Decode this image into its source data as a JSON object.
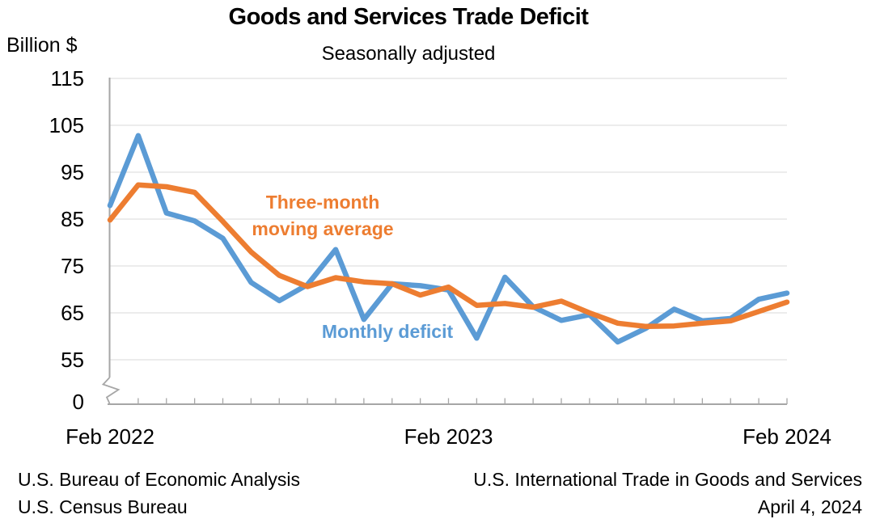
{
  "header": {
    "title": "Goods and Services Trade Deficit",
    "subtitle": "Seasonally adjusted"
  },
  "y_axis": {
    "unit_label": "Billion $",
    "ticks": [
      115,
      105,
      95,
      85,
      75,
      65,
      55
    ],
    "zero_label": "0",
    "has_axis_break": true
  },
  "x_axis": {
    "labels": [
      {
        "label": "Feb 2022",
        "index": 0
      },
      {
        "label": "Feb 2023",
        "index": 12
      },
      {
        "label": "Feb 2024",
        "index": 24
      }
    ]
  },
  "annotations": {
    "moving_average": [
      "Three-month",
      "moving average"
    ],
    "monthly": "Monthly deficit"
  },
  "footer": {
    "left": [
      "U.S. Bureau of Economic Analysis",
      "U.S. Census Bureau"
    ],
    "right": [
      "U.S. International Trade in Goods and Services",
      "April 4, 2024"
    ]
  },
  "colors": {
    "monthly_deficit": "#5B9BD5",
    "moving_average": "#ED7D31",
    "gridline": "#D9D9D9",
    "axis": "#A6A6A6"
  },
  "chart_data": {
    "type": "line",
    "title": "Goods and Services Trade Deficit",
    "subtitle": "Seasonally adjusted",
    "ylabel": "Billion $",
    "ylim_displayed": [
      55,
      115
    ],
    "y_axis_break_to_zero": true,
    "grid": "horizontal",
    "legend": "inline-annotations",
    "x": [
      "Feb 2022",
      "Mar 2022",
      "Apr 2022",
      "May 2022",
      "Jun 2022",
      "Jul 2022",
      "Aug 2022",
      "Sep 2022",
      "Oct 2022",
      "Nov 2022",
      "Dec 2022",
      "Jan 2023",
      "Feb 2023",
      "Mar 2023",
      "Apr 2023",
      "May 2023",
      "Jun 2023",
      "Jul 2023",
      "Aug 2023",
      "Sep 2023",
      "Oct 2023",
      "Nov 2023",
      "Dec 2023",
      "Jan 2024",
      "Feb 2024"
    ],
    "series": [
      {
        "name": "Monthly deficit",
        "color": "#5B9BD5",
        "values": [
          87.9,
          102.8,
          86.3,
          84.6,
          80.9,
          71.5,
          67.6,
          71.0,
          78.5,
          63.6,
          71.2,
          70.8,
          69.9,
          59.6,
          72.6,
          66.3,
          63.4,
          64.6,
          58.8,
          61.7,
          65.8,
          63.3,
          63.8,
          67.9,
          69.2
        ]
      },
      {
        "name": "Three-month moving average",
        "color": "#ED7D31",
        "values": [
          84.8,
          92.3,
          91.9,
          90.7,
          84.5,
          78.0,
          73.0,
          70.6,
          72.5,
          71.6,
          71.2,
          68.8,
          70.5,
          66.6,
          67.0,
          66.2,
          67.5,
          65.0,
          62.8,
          62.1,
          62.2,
          62.8,
          63.3,
          65.3,
          67.3
        ]
      }
    ]
  }
}
